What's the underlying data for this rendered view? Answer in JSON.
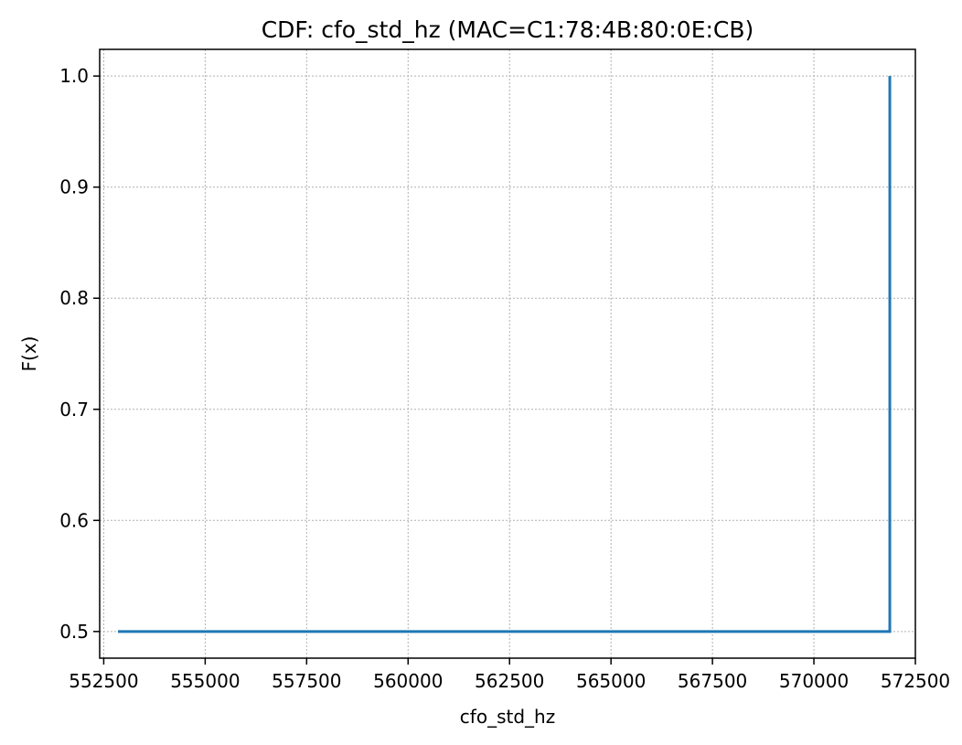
{
  "chart_data": {
    "type": "line",
    "title": "CDF: cfo_std_hz (MAC=C1:78:4B:80:0E:CB)",
    "xlabel": "cfo_std_hz",
    "ylabel": "F(x)",
    "xlim": [
      552400,
      572500
    ],
    "ylim": [
      0.476,
      1.024
    ],
    "xticks": [
      552500,
      555000,
      557500,
      560000,
      562500,
      565000,
      567500,
      570000,
      572500
    ],
    "xtick_labels": [
      "552500",
      "555000",
      "557500",
      "560000",
      "562500",
      "565000",
      "567500",
      "570000",
      "572500"
    ],
    "yticks": [
      0.5,
      0.6,
      0.7,
      0.8,
      0.9,
      1.0
    ],
    "ytick_labels": [
      "0.5",
      "0.6",
      "0.7",
      "0.8",
      "0.9",
      "1.0"
    ],
    "grid": true,
    "series": [
      {
        "color": "#1f77b4",
        "x": [
          552850,
          571870,
          571870
        ],
        "y": [
          0.5,
          0.5,
          1.0
        ]
      }
    ]
  }
}
